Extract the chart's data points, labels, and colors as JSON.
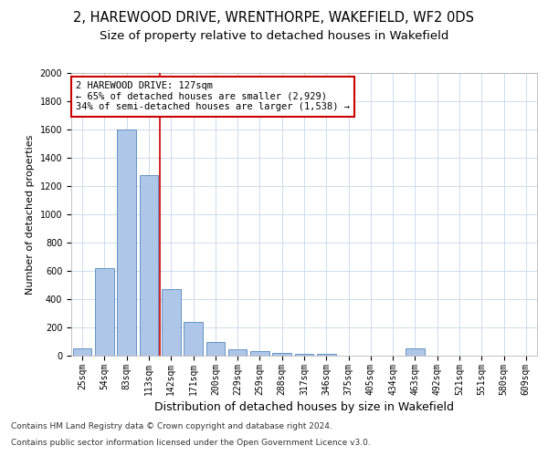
{
  "title1": "2, HAREWOOD DRIVE, WRENTHORPE, WAKEFIELD, WF2 0DS",
  "title2": "Size of property relative to detached houses in Wakefield",
  "xlabel": "Distribution of detached houses by size in Wakefield",
  "ylabel": "Number of detached properties",
  "categories": [
    "25sqm",
    "54sqm",
    "83sqm",
    "113sqm",
    "142sqm",
    "171sqm",
    "200sqm",
    "229sqm",
    "259sqm",
    "288sqm",
    "317sqm",
    "346sqm",
    "375sqm",
    "405sqm",
    "434sqm",
    "463sqm",
    "492sqm",
    "521sqm",
    "551sqm",
    "580sqm",
    "609sqm"
  ],
  "values": [
    50,
    620,
    1600,
    1280,
    470,
    240,
    100,
    45,
    30,
    20,
    15,
    10,
    0,
    0,
    0,
    50,
    0,
    0,
    0,
    0,
    0
  ],
  "bar_color": "#aec6e8",
  "bar_edge_color": "#5588bb",
  "reference_line_x": 3.5,
  "reference_line_color": "#cc0000",
  "annotation_text": "2 HAREWOOD DRIVE: 127sqm\n← 65% of detached houses are smaller (2,929)\n34% of semi-detached houses are larger (1,538) →",
  "annotation_box_color": "#ffffff",
  "annotation_box_edge_color": "#cc0000",
  "ylim": [
    0,
    2000
  ],
  "yticks": [
    0,
    200,
    400,
    600,
    800,
    1000,
    1200,
    1400,
    1600,
    1800,
    2000
  ],
  "footer1": "Contains HM Land Registry data © Crown copyright and database right 2024.",
  "footer2": "Contains public sector information licensed under the Open Government Licence v3.0.",
  "bg_color": "#ffffff",
  "grid_color": "#ccddee",
  "title1_fontsize": 10.5,
  "title2_fontsize": 9.5,
  "tick_fontsize": 7,
  "ylabel_fontsize": 8,
  "xlabel_fontsize": 9,
  "footer_fontsize": 6.5,
  "annotation_fontsize": 7.5
}
